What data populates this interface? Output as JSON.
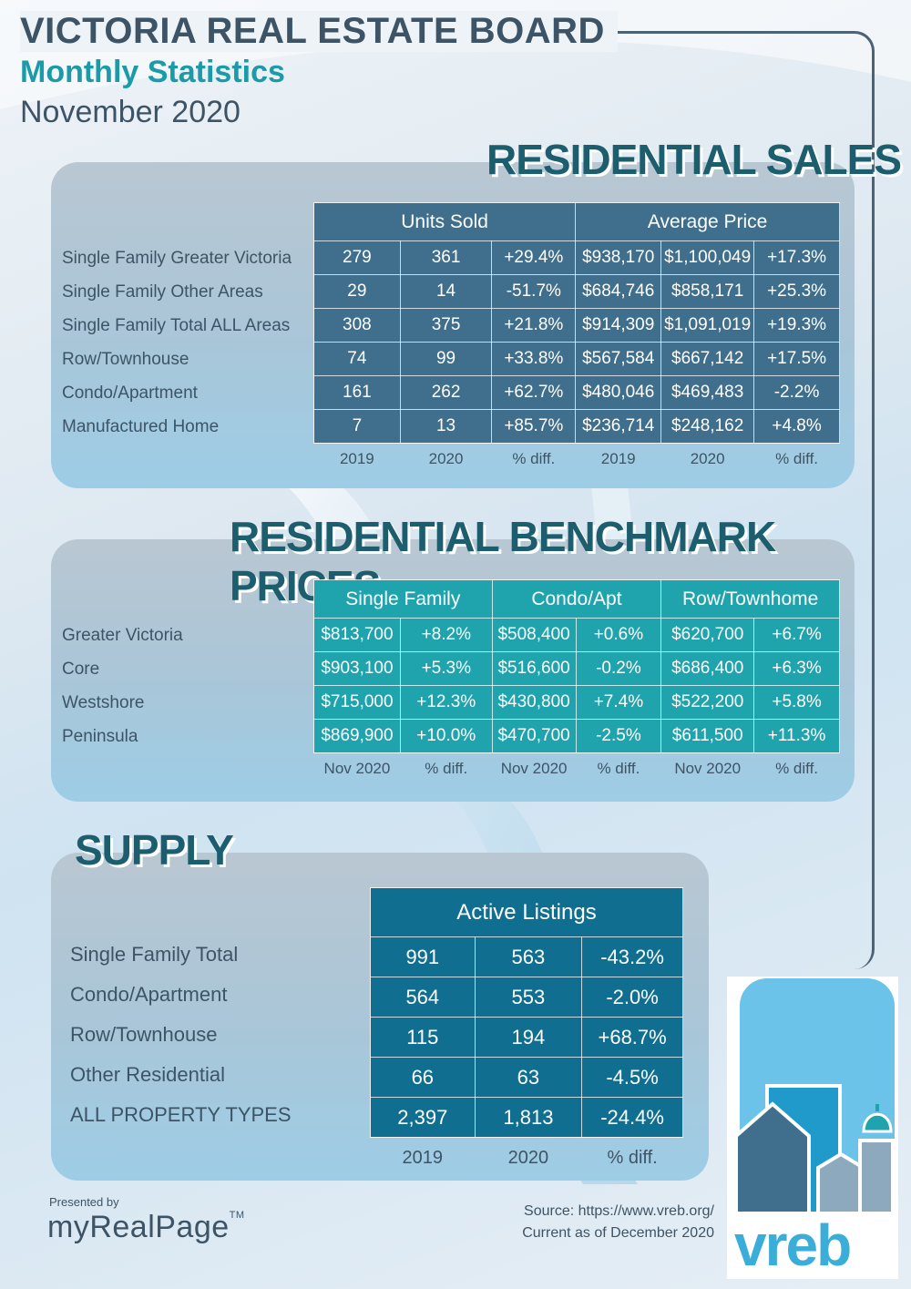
{
  "header": {
    "title": "VICTORIA REAL ESTATE BOARD",
    "subtitle": "Monthly Statistics",
    "period": "November 2020"
  },
  "sales": {
    "section_title": "RESIDENTIAL SALES",
    "group_headers": [
      "Units Sold",
      "Average Price"
    ],
    "rows": [
      {
        "label": "Single Family Greater Victoria",
        "cells": [
          "279",
          "361",
          "+29.4%",
          "$938,170",
          "$1,100,049",
          "+17.3%"
        ]
      },
      {
        "label": "Single Family Other Areas",
        "cells": [
          "29",
          "14",
          "-51.7%",
          "$684,746",
          "$858,171",
          "+25.3%"
        ]
      },
      {
        "label": "Single Family Total ALL Areas",
        "cells": [
          "308",
          "375",
          "+21.8%",
          "$914,309",
          "$1,091,019",
          "+19.3%"
        ]
      },
      {
        "label": "Row/Townhouse",
        "cells": [
          "74",
          "99",
          "+33.8%",
          "$567,584",
          "$667,142",
          "+17.5%"
        ]
      },
      {
        "label": "Condo/Apartment",
        "cells": [
          "161",
          "262",
          "+62.7%",
          "$480,046",
          "$469,483",
          "-2.2%"
        ]
      },
      {
        "label": "Manufactured Home",
        "cells": [
          "7",
          "13",
          "+85.7%",
          "$236,714",
          "$248,162",
          "+4.8%"
        ]
      }
    ],
    "footer": [
      "2019",
      "2020",
      "% diff.",
      "2019",
      "2020",
      "% diff."
    ]
  },
  "benchmark": {
    "section_title": "RESIDENTIAL BENCHMARK PRICES",
    "group_headers": [
      "Single Family",
      "Condo/Apt",
      "Row/Townhome"
    ],
    "rows": [
      {
        "label": "Greater Victoria",
        "cells": [
          "$813,700",
          "+8.2%",
          "$508,400",
          "+0.6%",
          "$620,700",
          "+6.7%"
        ]
      },
      {
        "label": "Core",
        "cells": [
          "$903,100",
          "+5.3%",
          "$516,600",
          "-0.2%",
          "$686,400",
          "+6.3%"
        ]
      },
      {
        "label": "Westshore",
        "cells": [
          "$715,000",
          "+12.3%",
          "$430,800",
          "+7.4%",
          "$522,200",
          "+5.8%"
        ]
      },
      {
        "label": "Peninsula",
        "cells": [
          "$869,900",
          "+10.0%",
          "$470,700",
          "-2.5%",
          "$611,500",
          "+11.3%"
        ]
      }
    ],
    "footer": [
      "Nov 2020",
      "% diff.",
      "Nov 2020",
      "% diff.",
      "Nov 2020",
      "% diff."
    ]
  },
  "supply": {
    "section_title": "SUPPLY",
    "group_header": "Active Listings",
    "rows": [
      {
        "label": "Single Family Total",
        "cells": [
          "991",
          "563",
          "-43.2%"
        ]
      },
      {
        "label": "Condo/Apartment",
        "cells": [
          "564",
          "553",
          "-2.0%"
        ]
      },
      {
        "label": "Row/Townhouse",
        "cells": [
          "115",
          "194",
          "+68.7%"
        ]
      },
      {
        "label": "Other Residential",
        "cells": [
          "66",
          "63",
          "-4.5%"
        ]
      },
      {
        "label": "ALL PROPERTY TYPES",
        "cells": [
          "2,397",
          "1,813",
          "-24.4%"
        ]
      }
    ],
    "footer": [
      "2019",
      "2020",
      "% diff."
    ]
  },
  "footer": {
    "presented_by": "Presented by",
    "brand": "myRealPage",
    "trademark": "TM",
    "source_line": "Source: https://www.vreb.org/",
    "current_line": "Current as of December 2020",
    "logo_text": "vreb"
  },
  "colors": {
    "sales_cell": "#3f6f8c",
    "benchmark_cell": "#1fa3ad",
    "supply_cell": "#106e90",
    "title_teal": "#1b9aa8",
    "section_title": "#1c5e6e"
  }
}
